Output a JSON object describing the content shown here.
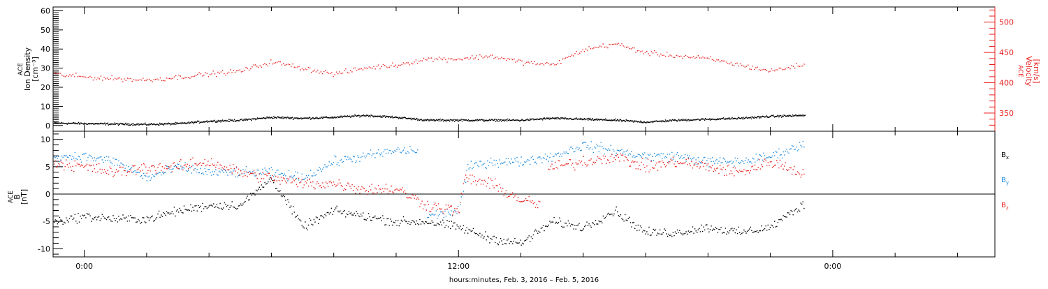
{
  "chart_data": [
    {
      "type": "scatter",
      "panel": "top",
      "x_range_hours": [
        -1,
        29.2
      ],
      "x_start_label": "Feb. 3, 2016",
      "left_ylabel_lines": [
        "ACE",
        "Ion Density",
        "[cm⁻³]"
      ],
      "right_ylabel_lines": [
        "ACE",
        "Velocity",
        "[km/s]"
      ],
      "left_ylim": [
        -3,
        62
      ],
      "left_yticks": [
        0,
        10,
        20,
        30,
        40,
        50,
        60
      ],
      "right_ylim": [
        320,
        525
      ],
      "right_yticks": [
        350,
        400,
        450,
        500
      ],
      "left_color": "#000000",
      "right_color": "#e8201f",
      "series": [
        {
          "axis": "left",
          "color": "#000000",
          "knots": [
            [
              -1,
              1.5
            ],
            [
              1,
              1
            ],
            [
              2,
              0.8
            ],
            [
              3,
              1.2
            ],
            [
              4,
              2.5
            ],
            [
              5,
              3
            ],
            [
              6,
              4.5
            ],
            [
              7,
              4
            ],
            [
              8,
              4.5
            ],
            [
              9,
              5.5
            ],
            [
              10,
              4.5
            ],
            [
              11,
              3
            ],
            [
              12,
              3
            ],
            [
              13,
              3
            ],
            [
              14,
              3
            ],
            [
              15,
              4
            ],
            [
              16,
              3.5
            ],
            [
              17,
              3
            ],
            [
              18,
              2
            ],
            [
              19,
              3
            ],
            [
              20,
              3.5
            ],
            [
              21,
              4
            ],
            [
              22,
              5
            ],
            [
              23,
              5.5
            ]
          ],
          "noise": 0.8,
          "step": 0.02,
          "x_end": 23.1
        },
        {
          "axis": "right",
          "color": "#e8201f",
          "knots": [
            [
              -1,
              415
            ],
            [
              0,
              410
            ],
            [
              2,
              405
            ],
            [
              3,
              410
            ],
            [
              4,
              415
            ],
            [
              5,
              420
            ],
            [
              6,
              435
            ],
            [
              7,
              425
            ],
            [
              8,
              415
            ],
            [
              9,
              425
            ],
            [
              10,
              430
            ],
            [
              11,
              440
            ],
            [
              12,
              440
            ],
            [
              13,
              445
            ],
            [
              14,
              435
            ],
            [
              15,
              430
            ],
            [
              16,
              455
            ],
            [
              17,
              465
            ],
            [
              18,
              450
            ],
            [
              19,
              445
            ],
            [
              20,
              440
            ],
            [
              21,
              430
            ],
            [
              22,
              420
            ],
            [
              23,
              430
            ]
          ],
          "noise": 6,
          "step": 0.05,
          "x_end": 23.1
        }
      ]
    },
    {
      "type": "scatter",
      "panel": "bottom",
      "x_range_hours": [
        -1,
        29.2
      ],
      "ylabel_lines": [
        "ACE",
        "B",
        "[nT]"
      ],
      "ylim": [
        -11.5,
        11.5
      ],
      "yticks": [
        -10,
        -5,
        0,
        5,
        10
      ],
      "zero_line": true,
      "series": [
        {
          "name": "Bₓ",
          "legend_main": "B",
          "legend_sub": "x",
          "color": "#000000",
          "knots": [
            [
              -1,
              -5
            ],
            [
              0,
              -4
            ],
            [
              1,
              -4.5
            ],
            [
              2,
              -4.5
            ],
            [
              3,
              -3
            ],
            [
              4,
              -2
            ],
            [
              5,
              -2
            ],
            [
              6,
              3
            ],
            [
              7,
              -6
            ],
            [
              8,
              -3
            ],
            [
              9,
              -4
            ],
            [
              10,
              -5
            ],
            [
              11,
              -5
            ],
            [
              12,
              -6
            ],
            [
              13,
              -8
            ],
            [
              14,
              -9
            ],
            [
              15,
              -5
            ],
            [
              16,
              -6
            ],
            [
              17,
              -3
            ],
            [
              18,
              -7
            ],
            [
              19,
              -7
            ],
            [
              20,
              -6
            ],
            [
              21,
              -7
            ],
            [
              22,
              -6
            ],
            [
              23,
              -2
            ]
          ],
          "noise": 1.2,
          "step": 0.035,
          "x_end": 23.1
        },
        {
          "name": "Bᵧ",
          "legend_main": "B",
          "legend_sub": "y",
          "color": "#1f8ce0",
          "knots": [
            [
              -1,
              7
            ],
            [
              0,
              7
            ],
            [
              1,
              6
            ],
            [
              2,
              3
            ],
            [
              3,
              5
            ],
            [
              4,
              4
            ],
            [
              5,
              4
            ],
            [
              6,
              4
            ],
            [
              7,
              3
            ],
            [
              8,
              6
            ],
            [
              9,
              7
            ],
            [
              10,
              8
            ],
            [
              10.7,
              8
            ],
            [
              10.72,
              null
            ],
            [
              11,
              -4
            ],
            [
              12,
              -3
            ],
            [
              12.3,
              5
            ],
            [
              13,
              6
            ],
            [
              14,
              6
            ],
            [
              15,
              7
            ],
            [
              16,
              9
            ],
            [
              17,
              8
            ],
            [
              18,
              7
            ],
            [
              19,
              7
            ],
            [
              20,
              6
            ],
            [
              21,
              6
            ],
            [
              22,
              7
            ],
            [
              23,
              9
            ]
          ],
          "noise": 1.3,
          "step": 0.035,
          "x_end": 23.1
        },
        {
          "name": "Bᶻ",
          "legend_main": "B",
          "legend_sub": "z",
          "color": "#e8201f",
          "knots": [
            [
              -1,
              6
            ],
            [
              0,
              5
            ],
            [
              1,
              4
            ],
            [
              2,
              5
            ],
            [
              3,
              5
            ],
            [
              4,
              6
            ],
            [
              5,
              4
            ],
            [
              6,
              3
            ],
            [
              7,
              2
            ],
            [
              8,
              2
            ],
            [
              9,
              1
            ],
            [
              10,
              1
            ],
            [
              11,
              -2
            ],
            [
              12,
              -3
            ],
            [
              12.2,
              3
            ],
            [
              13,
              2
            ],
            [
              14,
              -1
            ],
            [
              14.6,
              -2
            ],
            [
              14.62,
              null
            ],
            [
              15,
              5
            ],
            [
              16,
              6
            ],
            [
              17,
              7
            ],
            [
              18,
              5
            ],
            [
              19,
              6
            ],
            [
              20,
              5
            ],
            [
              21,
              4
            ],
            [
              22,
              6
            ],
            [
              23,
              4
            ]
          ],
          "noise": 1.6,
          "step": 0.035,
          "x_end": 23.1
        }
      ]
    }
  ],
  "x_axis": {
    "tick_labels": [
      {
        "hour": 0,
        "label": "0:00"
      },
      {
        "hour": 12,
        "label": "12:00"
      },
      {
        "hour": 24,
        "label": "0:00"
      }
    ],
    "minor_every_hours": 2,
    "title": "hours:minutes, Feb.  3, 2016 – Feb.  5, 2016"
  }
}
